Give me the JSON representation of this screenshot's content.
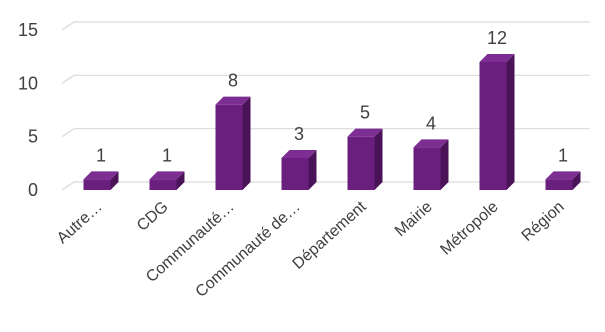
{
  "chart_data": {
    "type": "bar",
    "categories": [
      "Autre…",
      "CDG",
      "Communauté…",
      "Communauté de…",
      "Département",
      "Mairie",
      "Métropole",
      "Région"
    ],
    "values": [
      1,
      1,
      8,
      3,
      5,
      4,
      12,
      1
    ],
    "data_labels": [
      "1",
      "1",
      "8",
      "3",
      "5",
      "4",
      "12",
      "1"
    ],
    "yticks": [
      "0",
      "5",
      "10",
      "15"
    ],
    "ylim": [
      0,
      15
    ],
    "grid": true,
    "legend": "none",
    "bar_style": "3d",
    "colors": {
      "bar_front": "#6a1f7f",
      "bar_side": "#4a1358",
      "bar_top": "#7d2e93",
      "grid": "#d9d9d9",
      "text": "#404040"
    }
  }
}
